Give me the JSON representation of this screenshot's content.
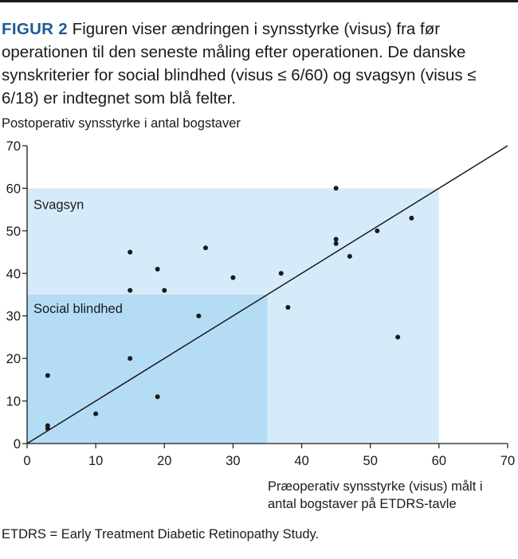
{
  "caption": {
    "label": "FIGUR 2",
    "text": " Figuren viser ændringen i synsstyrke (visus) fra før operationen til den seneste måling efter operationen. De danske synskriterier for social blindhed (visus ≤ 6/60) og svagsyn (visus ≤ 6/18) er indtegnet som blå felter."
  },
  "colors": {
    "caption_label": "#1f5a99",
    "svagsyn_region": "#d6ebfa",
    "social_blindhed_region": "#b5dcf5",
    "points": "#1a1a1a",
    "identity_line": "#1a1a1a"
  },
  "chart_data": {
    "type": "scatter",
    "ylabel": "Postoperativ synsstyrke i antal bogstaver",
    "xlabel_lines": [
      "Præoperativ synsstyrke (visus) målt i",
      "antal bogstaver på ETDRS-tavle"
    ],
    "xlim": [
      0,
      70
    ],
    "ylim": [
      0,
      70
    ],
    "xticks": [
      0,
      10,
      20,
      30,
      40,
      50,
      60,
      70
    ],
    "yticks": [
      0,
      10,
      20,
      30,
      40,
      50,
      60,
      70
    ],
    "grid": false,
    "regions": [
      {
        "label": "Svagsyn",
        "x_max": 60,
        "y_max": 60
      },
      {
        "label": "Social blindhed",
        "x_max": 35,
        "y_max": 35
      }
    ],
    "reference_line": {
      "type": "identity",
      "from": [
        0,
        0
      ],
      "to": [
        70,
        70
      ]
    },
    "points": [
      {
        "x": 3,
        "y": 3.5
      },
      {
        "x": 3,
        "y": 4.2
      },
      {
        "x": 3,
        "y": 16
      },
      {
        "x": 10,
        "y": 7
      },
      {
        "x": 15,
        "y": 20
      },
      {
        "x": 15,
        "y": 36
      },
      {
        "x": 15,
        "y": 45
      },
      {
        "x": 19,
        "y": 11
      },
      {
        "x": 19,
        "y": 41
      },
      {
        "x": 20,
        "y": 36
      },
      {
        "x": 25,
        "y": 30
      },
      {
        "x": 26,
        "y": 46
      },
      {
        "x": 30,
        "y": 39
      },
      {
        "x": 37,
        "y": 40
      },
      {
        "x": 38,
        "y": 32
      },
      {
        "x": 45,
        "y": 60
      },
      {
        "x": 45,
        "y": 47
      },
      {
        "x": 45,
        "y": 48
      },
      {
        "x": 47,
        "y": 44
      },
      {
        "x": 51,
        "y": 50
      },
      {
        "x": 54,
        "y": 25
      },
      {
        "x": 56,
        "y": 53
      }
    ]
  },
  "footnote": "ETDRS = Early Treatment Diabetic Retinopathy Study."
}
